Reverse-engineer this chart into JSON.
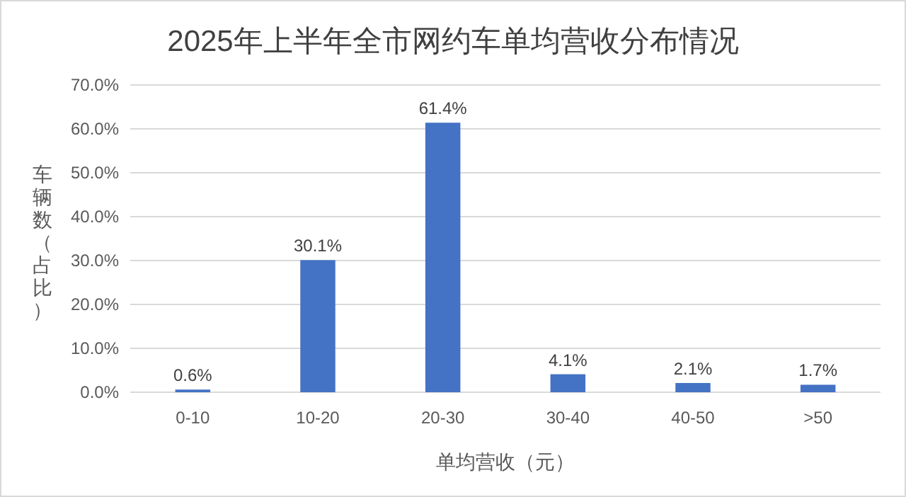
{
  "chart_data": {
    "type": "bar",
    "title": "2025年上半年全市网约车单均营收分布情况",
    "xlabel": "单均营收（元）",
    "ylabel": "车辆数（占比）",
    "categories": [
      "0-10",
      "10-20",
      "20-30",
      "30-40",
      "40-50",
      ">50"
    ],
    "series": [
      {
        "color": "#4472c4",
        "values": [
          0.6,
          30.1,
          61.4,
          4.1,
          2.1,
          1.7
        ],
        "value_labels": [
          "0.6%",
          "30.1%",
          "61.4%",
          "4.1%",
          "2.1%",
          "1.7%"
        ]
      }
    ],
    "ylim": [
      0,
      70
    ],
    "yticks": [
      {
        "value": 0,
        "label": "0.0%"
      },
      {
        "value": 10,
        "label": "10.0%"
      },
      {
        "value": 20,
        "label": "20.0%"
      },
      {
        "value": 30,
        "label": "30.0%"
      },
      {
        "value": 40,
        "label": "40.0%"
      },
      {
        "value": 50,
        "label": "50.0%"
      },
      {
        "value": 60,
        "label": "60.0%"
      },
      {
        "value": 70,
        "label": "70.0%"
      }
    ],
    "grid": "y"
  }
}
